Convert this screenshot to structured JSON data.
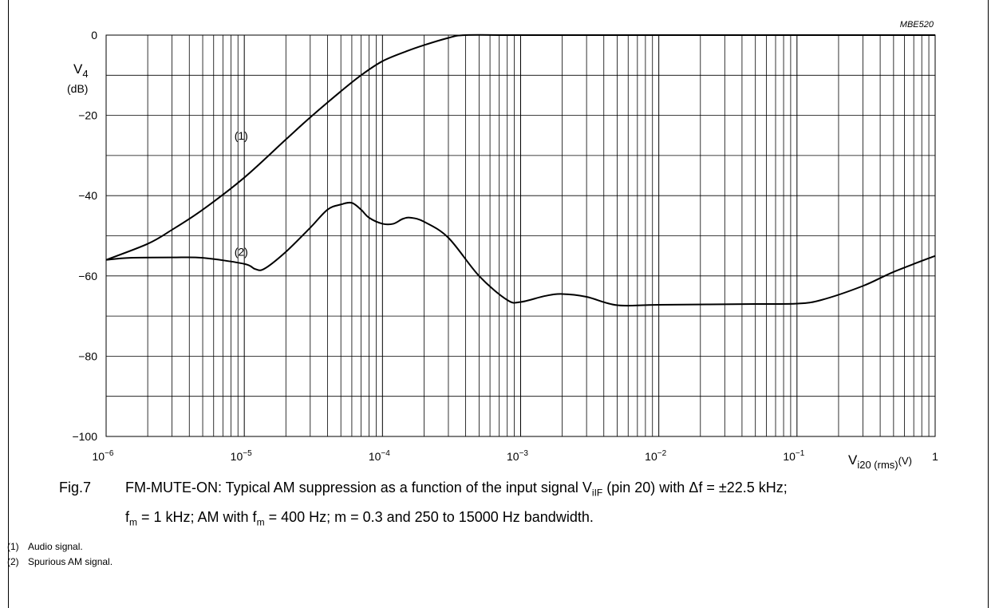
{
  "chart_data": {
    "type": "line",
    "figure_id": "MBE520",
    "x_scale": "log",
    "xlim": [
      1e-06,
      1
    ],
    "ylim": [
      -100,
      0
    ],
    "grid": true,
    "ylabel": {
      "main": "V",
      "sub": "4",
      "unit": "(dB)"
    },
    "xlabel": {
      "main": "V",
      "sub": "i20 (rms)",
      "unit": "(V)"
    },
    "y_ticks": [
      0,
      -20,
      -40,
      -60,
      -80,
      -100
    ],
    "y_tick_labels": [
      "0",
      "−20",
      "−40",
      "−60",
      "−80",
      "−100"
    ],
    "x_ticks": [
      {
        "value": 1e-06,
        "base": "10",
        "exp": "−6"
      },
      {
        "value": 1e-05,
        "base": "10",
        "exp": "−5"
      },
      {
        "value": 0.0001,
        "base": "10",
        "exp": "−4"
      },
      {
        "value": 0.001,
        "base": "10",
        "exp": "−3"
      },
      {
        "value": 0.01,
        "base": "10",
        "exp": "−2"
      },
      {
        "value": 0.1,
        "base": "10",
        "exp": "−1"
      },
      {
        "value": 1,
        "base": "1",
        "exp": ""
      }
    ],
    "series": [
      {
        "name": "(1)",
        "label_at": [
          9.5e-06,
          -25
        ],
        "points": [
          [
            1e-06,
            -56
          ],
          [
            2e-06,
            -52
          ],
          [
            3e-06,
            -48.5
          ],
          [
            5e-06,
            -43.5
          ],
          [
            1e-05,
            -35.5
          ],
          [
            2e-05,
            -26
          ],
          [
            3e-05,
            -20.5
          ],
          [
            5e-05,
            -14
          ],
          [
            7e-05,
            -10
          ],
          [
            0.0001,
            -6.5
          ],
          [
            0.00015,
            -4
          ],
          [
            0.0002,
            -2.5
          ],
          [
            0.0003,
            -0.7
          ],
          [
            0.0004,
            0
          ],
          [
            0.001,
            0
          ],
          [
            0.01,
            0
          ],
          [
            0.1,
            0
          ],
          [
            1,
            0
          ]
        ]
      },
      {
        "name": "(2)",
        "label_at": [
          9.5e-06,
          -54
        ],
        "points": [
          [
            1e-06,
            -56
          ],
          [
            1.5e-06,
            -55.5
          ],
          [
            3e-06,
            -55.4
          ],
          [
            5e-06,
            -55.5
          ],
          [
            1e-05,
            -57
          ],
          [
            1.2e-05,
            -58.3
          ],
          [
            1.4e-05,
            -58.2
          ],
          [
            2e-05,
            -54
          ],
          [
            3e-05,
            -48
          ],
          [
            4e-05,
            -43.5
          ],
          [
            5e-05,
            -42.2
          ],
          [
            6e-05,
            -41.8
          ],
          [
            7e-05,
            -43.5
          ],
          [
            8e-05,
            -45.5
          ],
          [
            0.0001,
            -47
          ],
          [
            0.00012,
            -47
          ],
          [
            0.00014,
            -45.8
          ],
          [
            0.00016,
            -45.5
          ],
          [
            0.0002,
            -46.5
          ],
          [
            0.0003,
            -50.5
          ],
          [
            0.0005,
            -60
          ],
          [
            0.0008,
            -66
          ],
          [
            0.001,
            -66.5
          ],
          [
            0.0015,
            -65
          ],
          [
            0.002,
            -64.5
          ],
          [
            0.003,
            -65.2
          ],
          [
            0.005,
            -67.3
          ],
          [
            0.01,
            -67.2
          ],
          [
            0.05,
            -67
          ],
          [
            0.1,
            -66.9
          ],
          [
            0.15,
            -66
          ],
          [
            0.3,
            -62.5
          ],
          [
            0.5,
            -59
          ],
          [
            1,
            -55
          ]
        ]
      }
    ]
  },
  "notes": [
    {
      "num": "(1)",
      "text": "Audio signal."
    },
    {
      "num": "(2)",
      "text": "Spurious AM signal."
    }
  ],
  "caption": {
    "fig": "Fig.7",
    "line1_a": "FM-MUTE-ON: Typical AM suppression as a function of the input signal V",
    "line1_sub": "iIF",
    "line1_b": " (pin 20) with Δf = ±22.5 kHz;",
    "line2_a": "f",
    "line2_sub1": "m",
    "line2_b": " = 1 kHz; AM with f",
    "line2_sub2": "m",
    "line2_c": " = 400 Hz; m = 0.3 and 250 to 15000 Hz bandwidth."
  }
}
